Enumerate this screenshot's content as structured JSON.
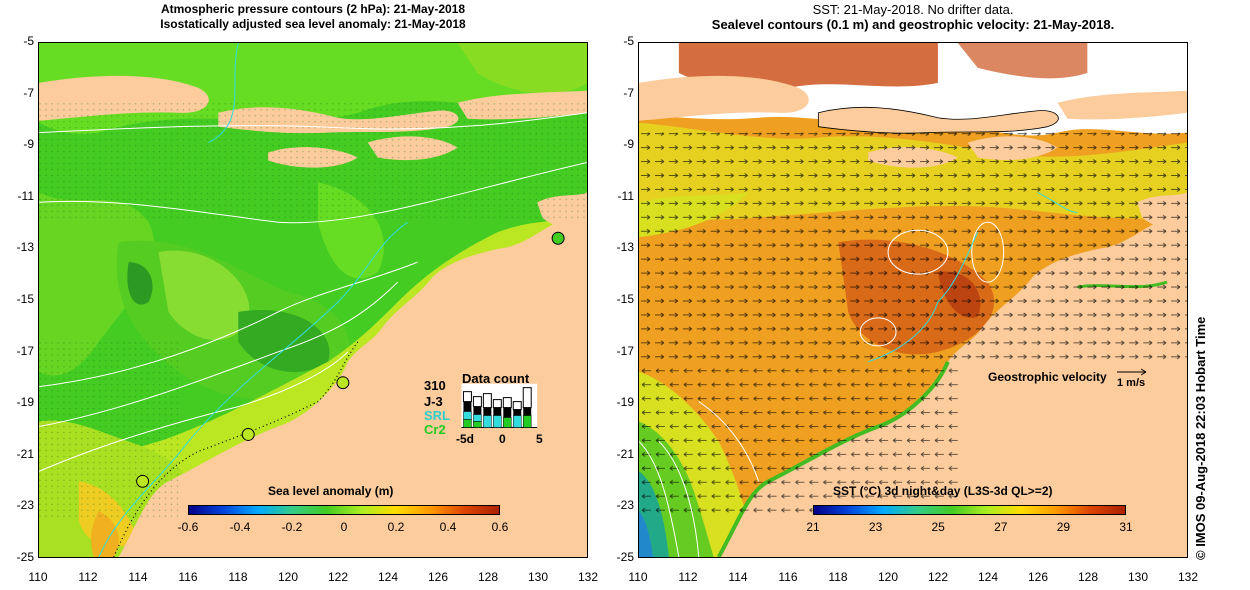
{
  "left_panel": {
    "title_line1": "Atmospheric pressure contours (2 hPa): 21-May-2018",
    "title_line2": "Isostatically adjusted sea level anomaly: 21-May-2018",
    "colorbar_title": "Sea level anomaly (m)",
    "colorbar_ticks": [
      "-0.6",
      "-0.4",
      "-0.2",
      "0",
      "0.2",
      "0.4",
      "0.6"
    ],
    "data_count": {
      "label_number": "310",
      "title": "Data count",
      "satellites": [
        "J-3",
        "SRL",
        "Cr2"
      ],
      "satellite_colors": [
        "#000000",
        "#33cccc",
        "#22cc22"
      ],
      "axis_ticks": [
        "-5d",
        "0",
        "5"
      ]
    }
  },
  "right_panel": {
    "title_line1": "SST: 21-May-2018. No drifter data.",
    "title_line2": "Sealevel contours (0.1 m) and geostrophic velocity: 21-May-2018.",
    "colorbar_title": "SST (°C) 3d night&day (L3S-3d QL>=2)",
    "colorbar_ticks": [
      "21",
      "23",
      "25",
      "27",
      "29",
      "31"
    ],
    "velocity_label": "Geostrophic velocity",
    "velocity_unit": "1 m/s"
  },
  "axes": {
    "y_ticks": [
      "-5",
      "-7",
      "-9",
      "-11",
      "-13",
      "-15",
      "-17",
      "-19",
      "-21",
      "-23",
      "-25"
    ],
    "x_ticks": [
      "110",
      "112",
      "114",
      "116",
      "118",
      "120",
      "122",
      "124",
      "126",
      "128",
      "130",
      "132"
    ]
  },
  "credit": "© IMOS 09-Aug-2018 22:03 Hobart Time",
  "colors": {
    "land": "#fccc9c",
    "anomaly_green": "#4ccc22",
    "anomaly_yellow": "#ccee22",
    "sst_orange": "#f0a020"
  }
}
